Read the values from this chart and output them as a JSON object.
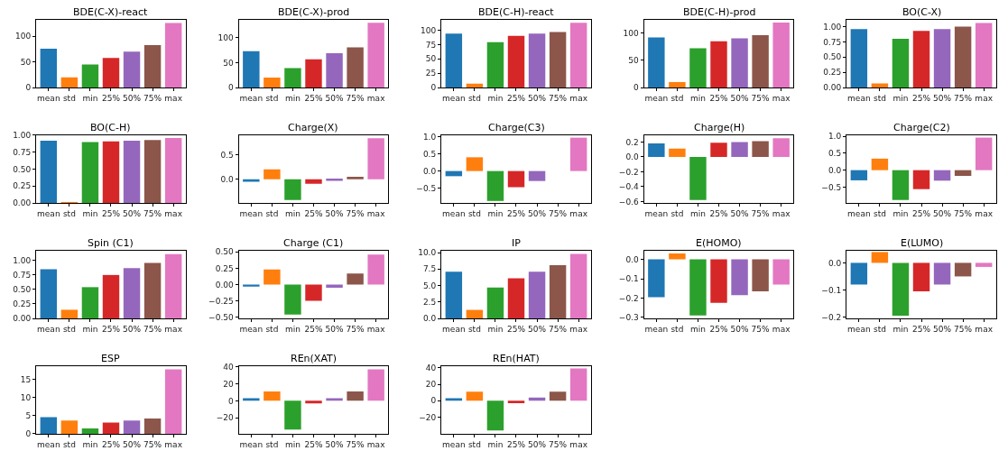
{
  "chart_data": [
    {
      "type": "bar",
      "title": "BDE(C-X)-react",
      "categories": [
        "mean",
        "std",
        "min",
        "25%",
        "50%",
        "75%",
        "max"
      ],
      "values": [
        76,
        20,
        45,
        58,
        70,
        83,
        126
      ],
      "colors": [
        "#1f77b4",
        "#ff7f0e",
        "#2ca02c",
        "#d62728",
        "#9467bd",
        "#8c564b",
        "#e377c2"
      ],
      "ylim": [
        0,
        132
      ],
      "yticks": [
        0,
        50,
        100
      ]
    },
    {
      "type": "bar",
      "title": "BDE(C-X)-prod",
      "categories": [
        "mean",
        "std",
        "min",
        "25%",
        "50%",
        "75%",
        "max"
      ],
      "values": [
        73,
        20,
        39,
        57,
        69,
        81,
        130
      ],
      "colors": [
        "#1f77b4",
        "#ff7f0e",
        "#2ca02c",
        "#d62728",
        "#9467bd",
        "#8c564b",
        "#e377c2"
      ],
      "ylim": [
        0,
        136
      ],
      "yticks": [
        0,
        50,
        100
      ]
    },
    {
      "type": "bar",
      "title": "BDE(C-H)-react",
      "categories": [
        "mean",
        "std",
        "min",
        "25%",
        "50%",
        "75%",
        "max"
      ],
      "values": [
        94,
        7,
        79,
        90,
        94,
        97,
        113
      ],
      "colors": [
        "#1f77b4",
        "#ff7f0e",
        "#2ca02c",
        "#d62728",
        "#9467bd",
        "#8c564b",
        "#e377c2"
      ],
      "ylim": [
        0,
        118
      ],
      "yticks": [
        0,
        25,
        50,
        75,
        100
      ]
    },
    {
      "type": "bar",
      "title": "BDE(C-H)-prod",
      "categories": [
        "mean",
        "std",
        "min",
        "25%",
        "50%",
        "75%",
        "max"
      ],
      "values": [
        92,
        10,
        72,
        85,
        90,
        96,
        119
      ],
      "colors": [
        "#1f77b4",
        "#ff7f0e",
        "#2ca02c",
        "#d62728",
        "#9467bd",
        "#8c564b",
        "#e377c2"
      ],
      "ylim": [
        0,
        124
      ],
      "yticks": [
        0,
        50,
        100
      ]
    },
    {
      "type": "bar",
      "title": "BO(C-X)",
      "categories": [
        "mean",
        "std",
        "min",
        "25%",
        "50%",
        "75%",
        "max"
      ],
      "values": [
        0.96,
        0.07,
        0.8,
        0.93,
        0.96,
        1.0,
        1.06
      ],
      "colors": [
        "#1f77b4",
        "#ff7f0e",
        "#2ca02c",
        "#d62728",
        "#9467bd",
        "#8c564b",
        "#e377c2"
      ],
      "ylim": [
        0,
        1.11
      ],
      "yticks": [
        {
          "value": 0,
          "label": "0.00"
        },
        {
          "value": 0.25,
          "label": "0.25"
        },
        {
          "value": 0.5,
          "label": "0.50"
        },
        {
          "value": 0.75,
          "label": "0.75"
        },
        {
          "value": 1,
          "label": "1.00"
        }
      ]
    },
    {
      "type": "bar",
      "title": "BO(C-H)",
      "categories": [
        "mean",
        "std",
        "min",
        "25%",
        "50%",
        "75%",
        "max"
      ],
      "values": [
        0.92,
        0.01,
        0.9,
        0.91,
        0.92,
        0.93,
        0.96
      ],
      "colors": [
        "#1f77b4",
        "#ff7f0e",
        "#2ca02c",
        "#d62728",
        "#9467bd",
        "#8c564b",
        "#e377c2"
      ],
      "ylim": [
        0,
        1.0
      ],
      "yticks": [
        {
          "value": 0,
          "label": "0.00"
        },
        {
          "value": 0.25,
          "label": "0.25"
        },
        {
          "value": 0.5,
          "label": "0.50"
        },
        {
          "value": 0.75,
          "label": "0.75"
        },
        {
          "value": 1,
          "label": "1.00"
        }
      ]
    },
    {
      "type": "bar",
      "title": "Charge(X)",
      "categories": [
        "mean",
        "std",
        "min",
        "25%",
        "50%",
        "75%",
        "max"
      ],
      "values": [
        -0.05,
        0.2,
        -0.42,
        -0.09,
        -0.03,
        0.05,
        0.83
      ],
      "colors": [
        "#1f77b4",
        "#ff7f0e",
        "#2ca02c",
        "#d62728",
        "#9467bd",
        "#8c564b",
        "#e377c2"
      ],
      "ylim": [
        -0.48,
        0.89
      ],
      "yticks": [
        {
          "value": 0,
          "label": "0.0"
        },
        {
          "value": 0.5,
          "label": "0.5"
        }
      ]
    },
    {
      "type": "bar",
      "title": "Charge(C3)",
      "categories": [
        "mean",
        "std",
        "min",
        "25%",
        "50%",
        "75%",
        "max"
      ],
      "values": [
        -0.15,
        0.4,
        -0.87,
        -0.47,
        -0.29,
        0,
        0.97
      ],
      "colors": [
        "#1f77b4",
        "#ff7f0e",
        "#2ca02c",
        "#d62728",
        "#9467bd",
        "#8c564b",
        "#e377c2"
      ],
      "ylim": [
        -0.93,
        1.04
      ],
      "yticks": [
        {
          "value": -0.5,
          "label": "−0.5"
        },
        {
          "value": 0,
          "label": "0.0"
        },
        {
          "value": 0.5,
          "label": "0.5"
        },
        {
          "value": 1,
          "label": "1.0"
        }
      ]
    },
    {
      "type": "bar",
      "title": "Charge(H)",
      "categories": [
        "mean",
        "std",
        "min",
        "25%",
        "50%",
        "75%",
        "max"
      ],
      "values": [
        0.18,
        0.11,
        -0.58,
        0.19,
        0.2,
        0.21,
        0.25
      ],
      "colors": [
        "#1f77b4",
        "#ff7f0e",
        "#2ca02c",
        "#d62728",
        "#9467bd",
        "#8c564b",
        "#e377c2"
      ],
      "ylim": [
        -0.62,
        0.29
      ],
      "yticks": [
        {
          "value": -0.6,
          "label": "−0.6"
        },
        {
          "value": -0.4,
          "label": "−0.4"
        },
        {
          "value": -0.2,
          "label": "−0.2"
        },
        {
          "value": 0,
          "label": "0.0"
        },
        {
          "value": 0.2,
          "label": "0.2"
        }
      ]
    },
    {
      "type": "bar",
      "title": "Charge(C2)",
      "categories": [
        "mean",
        "std",
        "min",
        "25%",
        "50%",
        "75%",
        "max"
      ],
      "values": [
        -0.3,
        0.34,
        -0.88,
        -0.56,
        -0.31,
        -0.17,
        0.96
      ],
      "colors": [
        "#1f77b4",
        "#ff7f0e",
        "#2ca02c",
        "#d62728",
        "#9467bd",
        "#8c564b",
        "#e377c2"
      ],
      "ylim": [
        -0.97,
        1.03
      ],
      "yticks": [
        {
          "value": -0.5,
          "label": "−0.5"
        },
        {
          "value": 0,
          "label": "0.0"
        },
        {
          "value": 0.5,
          "label": "0.5"
        },
        {
          "value": 1,
          "label": "1.0"
        }
      ]
    },
    {
      "type": "bar",
      "title": "Spin (C1)",
      "categories": [
        "mean",
        "std",
        "min",
        "25%",
        "50%",
        "75%",
        "max"
      ],
      "values": [
        0.85,
        0.15,
        0.54,
        0.75,
        0.87,
        0.96,
        1.11
      ],
      "colors": [
        "#1f77b4",
        "#ff7f0e",
        "#2ca02c",
        "#d62728",
        "#9467bd",
        "#8c564b",
        "#e377c2"
      ],
      "ylim": [
        0,
        1.17
      ],
      "yticks": [
        {
          "value": 0,
          "label": "0.00"
        },
        {
          "value": 0.25,
          "label": "0.25"
        },
        {
          "value": 0.5,
          "label": "0.50"
        },
        {
          "value": 0.75,
          "label": "0.75"
        },
        {
          "value": 1,
          "label": "1.00"
        }
      ]
    },
    {
      "type": "bar",
      "title": "Charge (C1)",
      "categories": [
        "mean",
        "std",
        "min",
        "25%",
        "50%",
        "75%",
        "max"
      ],
      "values": [
        -0.03,
        0.23,
        -0.46,
        -0.25,
        -0.05,
        0.17,
        0.46
      ],
      "colors": [
        "#1f77b4",
        "#ff7f0e",
        "#2ca02c",
        "#d62728",
        "#9467bd",
        "#8c564b",
        "#e377c2"
      ],
      "ylim": [
        -0.52,
        0.52
      ],
      "yticks": [
        {
          "value": -0.5,
          "label": "−0.50"
        },
        {
          "value": -0.25,
          "label": "−0.25"
        },
        {
          "value": 0,
          "label": "0.00"
        },
        {
          "value": 0.25,
          "label": "0.25"
        },
        {
          "value": 0.5,
          "label": "0.50"
        }
      ]
    },
    {
      "type": "bar",
      "title": "IP",
      "categories": [
        "mean",
        "std",
        "min",
        "25%",
        "50%",
        "75%",
        "max"
      ],
      "values": [
        7.1,
        1.3,
        4.7,
        6.1,
        7.1,
        8.1,
        9.8
      ],
      "colors": [
        "#1f77b4",
        "#ff7f0e",
        "#2ca02c",
        "#d62728",
        "#9467bd",
        "#8c564b",
        "#e377c2"
      ],
      "ylim": [
        0,
        10.3
      ],
      "yticks": [
        {
          "value": 0,
          "label": "0.0"
        },
        2.5,
        {
          "value": 5,
          "label": "5.0"
        },
        7.5,
        {
          "value": 10,
          "label": "10.0"
        }
      ]
    },
    {
      "type": "bar",
      "title": "E(HOMO)",
      "categories": [
        "mean",
        "std",
        "min",
        "25%",
        "50%",
        "75%",
        "max"
      ],
      "values": [
        -0.195,
        0.03,
        -0.29,
        -0.225,
        -0.185,
        -0.165,
        -0.13
      ],
      "colors": [
        "#1f77b4",
        "#ff7f0e",
        "#2ca02c",
        "#d62728",
        "#9467bd",
        "#8c564b",
        "#e377c2"
      ],
      "ylim": [
        -0.305,
        0.045
      ],
      "yticks": [
        {
          "value": -0.3,
          "label": "−0.3"
        },
        {
          "value": -0.2,
          "label": "−0.2"
        },
        {
          "value": -0.1,
          "label": "−0.1"
        },
        {
          "value": 0,
          "label": "0.0"
        }
      ]
    },
    {
      "type": "bar",
      "title": "E(LUMO)",
      "categories": [
        "mean",
        "std",
        "min",
        "25%",
        "50%",
        "75%",
        "max"
      ],
      "values": [
        -0.08,
        0.04,
        -0.195,
        -0.105,
        -0.08,
        -0.05,
        -0.015
      ],
      "colors": [
        "#1f77b4",
        "#ff7f0e",
        "#2ca02c",
        "#d62728",
        "#9467bd",
        "#8c564b",
        "#e377c2"
      ],
      "ylim": [
        -0.205,
        0.045
      ],
      "yticks": [
        {
          "value": -0.2,
          "label": "−0.2"
        },
        {
          "value": -0.1,
          "label": "−0.1"
        },
        {
          "value": 0,
          "label": "0.0"
        }
      ]
    },
    {
      "type": "bar",
      "title": "ESP",
      "categories": [
        "mean",
        "std",
        "min",
        "25%",
        "50%",
        "75%",
        "max"
      ],
      "values": [
        4.6,
        3.7,
        1.5,
        3.1,
        3.7,
        4.2,
        17.8
      ],
      "colors": [
        "#1f77b4",
        "#ff7f0e",
        "#2ca02c",
        "#d62728",
        "#9467bd",
        "#8c564b",
        "#e377c2"
      ],
      "ylim": [
        0,
        18.7
      ],
      "yticks": [
        0,
        5,
        10,
        15
      ]
    },
    {
      "type": "bar",
      "title": "REn(XAT)",
      "categories": [
        "mean",
        "std",
        "min",
        "25%",
        "50%",
        "75%",
        "max"
      ],
      "values": [
        3,
        11,
        -34,
        -3,
        3,
        11,
        37
      ],
      "colors": [
        "#1f77b4",
        "#ff7f0e",
        "#2ca02c",
        "#d62728",
        "#9467bd",
        "#8c564b",
        "#e377c2"
      ],
      "ylim": [
        -39,
        41
      ],
      "yticks": [
        {
          "value": -20,
          "label": "−20"
        },
        0,
        20,
        40
      ]
    },
    {
      "type": "bar",
      "title": "REn(HAT)",
      "categories": [
        "mean",
        "std",
        "min",
        "25%",
        "50%",
        "75%",
        "max"
      ],
      "values": [
        3,
        11,
        -36,
        -3,
        4,
        11,
        39
      ],
      "colors": [
        "#1f77b4",
        "#ff7f0e",
        "#2ca02c",
        "#d62728",
        "#9467bd",
        "#8c564b",
        "#e377c2"
      ],
      "ylim": [
        -40,
        42
      ],
      "yticks": [
        {
          "value": -20,
          "label": "−20"
        },
        0,
        20,
        40
      ]
    }
  ]
}
